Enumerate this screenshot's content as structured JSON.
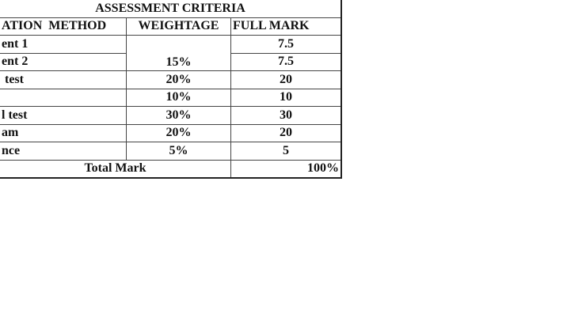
{
  "title": "ASSESSMENT CRITERIA",
  "headers": [
    "ATION  METHOD",
    "WEIGHTAGE",
    "FULL MARK"
  ],
  "rows": [
    {
      "method": "ent 1",
      "weightage": "",
      "full_mark": "7.5"
    },
    {
      "method": "ent 2",
      "weightage": "15%",
      "full_mark": "7.5"
    },
    {
      "method": " test",
      "weightage": "20%",
      "full_mark": "20"
    },
    {
      "method": "",
      "weightage": "10%",
      "full_mark": "10"
    },
    {
      "method": "l test",
      "weightage": "30%",
      "full_mark": "30"
    },
    {
      "method": "am",
      "weightage": "20%",
      "full_mark": "20"
    },
    {
      "method": "nce",
      "weightage": "5%",
      "full_mark": "5"
    }
  ],
  "total": {
    "label": "Total Mark",
    "value": "100%"
  }
}
